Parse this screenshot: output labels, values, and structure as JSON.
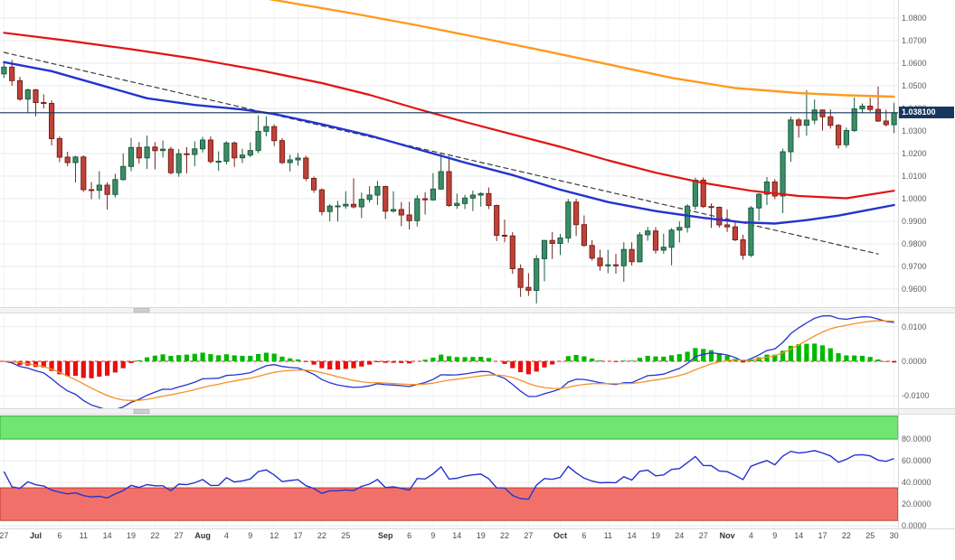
{
  "chart_data": {
    "type": "candlestick",
    "legend_position": "none",
    "grid": true,
    "xticks": [
      [
        0,
        "27"
      ],
      [
        4,
        "Jul"
      ],
      [
        7,
        "6"
      ],
      [
        10,
        "11"
      ],
      [
        13,
        "14"
      ],
      [
        16,
        "19"
      ],
      [
        19,
        "22"
      ],
      [
        22,
        "27"
      ],
      [
        25,
        "Aug"
      ],
      [
        28,
        "4"
      ],
      [
        31,
        "9"
      ],
      [
        34,
        "12"
      ],
      [
        37,
        "17"
      ],
      [
        40,
        "22"
      ],
      [
        43,
        "25"
      ],
      [
        48,
        "Sep"
      ],
      [
        51,
        "6"
      ],
      [
        54,
        "9"
      ],
      [
        57,
        "14"
      ],
      [
        60,
        "19"
      ],
      [
        63,
        "22"
      ],
      [
        66,
        "27"
      ],
      [
        70,
        "Oct"
      ],
      [
        73,
        "6"
      ],
      [
        76,
        "11"
      ],
      [
        79,
        "14"
      ],
      [
        82,
        "19"
      ],
      [
        85,
        "24"
      ],
      [
        88,
        "27"
      ],
      [
        91,
        "Nov"
      ],
      [
        94,
        "4"
      ],
      [
        97,
        "9"
      ],
      [
        100,
        "14"
      ],
      [
        103,
        "17"
      ],
      [
        106,
        "22"
      ],
      [
        109,
        "25"
      ],
      [
        112,
        "30"
      ]
    ],
    "price_panel": {
      "ylim": [
        0.952,
        1.088
      ],
      "yticks": [
        1.08,
        1.07,
        1.06,
        1.05,
        1.04,
        1.03,
        1.02,
        1.01,
        1.0,
        0.99,
        0.98,
        0.97,
        0.96
      ],
      "candle_colors": {
        "up": "#3a8e66",
        "up_edge": "#1f5a40",
        "down": "#bf4238",
        "down_edge": "#79231b"
      },
      "price_line": {
        "value": 1.0381,
        "label": "1.038100",
        "color": "#17375e"
      },
      "candles": [
        [
          1.0553,
          1.06,
          1.0535,
          1.0583
        ],
        [
          1.0583,
          1.0615,
          1.05,
          1.0523
        ],
        [
          1.0523,
          1.054,
          1.0434,
          1.0441
        ],
        [
          1.0441,
          1.0488,
          1.0382,
          1.0482
        ],
        [
          1.0482,
          1.0486,
          1.0365,
          1.0426
        ],
        [
          1.0426,
          1.0462,
          1.04,
          1.0422
        ],
        [
          1.0422,
          1.0435,
          1.0236,
          1.0266
        ],
        [
          1.0266,
          1.0276,
          1.0162,
          1.0184
        ],
        [
          1.0184,
          1.0208,
          1.0144,
          1.016
        ],
        [
          1.016,
          1.019,
          1.0072,
          1.0185
        ],
        [
          1.0185,
          1.0192,
          1.003,
          1.004
        ],
        [
          1.004,
          1.0074,
          0.9998,
          1.0037
        ],
        [
          1.0037,
          1.0122,
          0.9998,
          1.006
        ],
        [
          1.006,
          1.0072,
          0.9952,
          1.0019
        ],
        [
          1.0019,
          1.011,
          1.0005,
          1.0085
        ],
        [
          1.0085,
          1.0201,
          1.008,
          1.0143
        ],
        [
          1.0143,
          1.0269,
          1.0122,
          1.0227
        ],
        [
          1.0227,
          1.0251,
          1.0156,
          1.0181
        ],
        [
          1.0181,
          1.0279,
          1.0132,
          1.0229
        ],
        [
          1.0229,
          1.025,
          1.013,
          1.0213
        ],
        [
          1.0213,
          1.0258,
          1.0182,
          1.0219
        ],
        [
          1.0219,
          1.023,
          1.0108,
          1.0115
        ],
        [
          1.0115,
          1.022,
          1.0097,
          1.0199
        ],
        [
          1.0199,
          1.0228,
          1.0113,
          1.0196
        ],
        [
          1.0196,
          1.0254,
          1.0144,
          1.0221
        ],
        [
          1.0221,
          1.0274,
          1.0205,
          1.026
        ],
        [
          1.026,
          1.0276,
          1.0155,
          1.0165
        ],
        [
          1.0165,
          1.021,
          1.0123,
          1.0166
        ],
        [
          1.0166,
          1.0254,
          1.0152,
          1.0247
        ],
        [
          1.0247,
          1.0253,
          1.0141,
          1.0181
        ],
        [
          1.0181,
          1.0221,
          1.0158,
          1.0193
        ],
        [
          1.0193,
          1.0249,
          1.0184,
          1.0213
        ],
        [
          1.0213,
          1.0369,
          1.0202,
          1.0298
        ],
        [
          1.0298,
          1.0365,
          1.0276,
          1.0319
        ],
        [
          1.0319,
          1.0329,
          1.0233,
          1.0257
        ],
        [
          1.0257,
          1.0268,
          1.0154,
          1.016
        ],
        [
          1.016,
          1.0195,
          1.0121,
          1.0172
        ],
        [
          1.0172,
          1.0202,
          1.0146,
          1.018
        ],
        [
          1.018,
          1.0191,
          1.0078,
          1.009
        ],
        [
          1.009,
          1.0098,
          1.0026,
          1.0039
        ],
        [
          1.0039,
          1.0046,
          0.9926,
          0.9943
        ],
        [
          0.9943,
          0.9976,
          0.99,
          0.9967
        ],
        [
          0.9967,
          0.999,
          0.9899,
          0.9968
        ],
        [
          0.9968,
          1.0033,
          0.9956,
          0.9975
        ],
        [
          0.9975,
          1.009,
          0.9957,
          0.9964
        ],
        [
          0.9964,
          1.0027,
          0.9914,
          0.9997
        ],
        [
          0.9997,
          1.0055,
          0.9983,
          1.0016
        ],
        [
          1.0016,
          1.0079,
          0.9972,
          1.0054
        ],
        [
          1.0054,
          1.0058,
          0.991,
          0.9945
        ],
        [
          0.9945,
          1.0033,
          0.9939,
          0.9952
        ],
        [
          0.9952,
          0.9985,
          0.9878,
          0.9928
        ],
        [
          0.9928,
          0.9986,
          0.9864,
          0.9903
        ],
        [
          0.9903,
          1.0015,
          0.9877,
          1.0
        ],
        [
          1.0,
          1.0029,
          0.993,
          0.9995
        ],
        [
          0.9995,
          1.0113,
          0.9991,
          1.0043
        ],
        [
          1.0043,
          1.0198,
          1.004,
          1.012
        ],
        [
          1.012,
          1.0187,
          0.9964,
          0.997
        ],
        [
          0.997,
          1.0023,
          0.9955,
          0.9979
        ],
        [
          0.9979,
          1.0017,
          0.9954,
          1.0003
        ],
        [
          1.0003,
          1.0036,
          0.9945,
          1.0016
        ],
        [
          1.0016,
          1.0029,
          0.9965,
          1.0023
        ],
        [
          1.0023,
          1.005,
          0.9954,
          0.997
        ],
        [
          0.997,
          0.9974,
          0.9813,
          0.9838
        ],
        [
          0.9838,
          0.9907,
          0.9807,
          0.9835
        ],
        [
          0.9835,
          0.9852,
          0.9667,
          0.969
        ],
        [
          0.969,
          0.9709,
          0.9565,
          0.9607
        ],
        [
          0.9607,
          0.967,
          0.957,
          0.9594
        ],
        [
          0.9594,
          0.975,
          0.9536,
          0.9734
        ],
        [
          0.9734,
          0.9816,
          0.9634,
          0.9815
        ],
        [
          0.9815,
          0.9853,
          0.9733,
          0.9802
        ],
        [
          0.9802,
          0.9844,
          0.9751,
          0.9826
        ],
        [
          0.9826,
          0.9999,
          0.9805,
          0.9985
        ],
        [
          0.9985,
          1.0,
          0.9835,
          0.9885
        ],
        [
          0.9885,
          0.9926,
          0.9787,
          0.9793
        ],
        [
          0.9793,
          0.9817,
          0.9726,
          0.9737
        ],
        [
          0.9737,
          0.9774,
          0.9681,
          0.9703
        ],
        [
          0.9703,
          0.9774,
          0.967,
          0.9707
        ],
        [
          0.9707,
          0.9756,
          0.9668,
          0.9703
        ],
        [
          0.9703,
          0.9807,
          0.9632,
          0.9775
        ],
        [
          0.9775,
          0.9807,
          0.9704,
          0.9721
        ],
        [
          0.9721,
          0.9852,
          0.9718,
          0.984
        ],
        [
          0.984,
          0.9875,
          0.9814,
          0.9857
        ],
        [
          0.9857,
          0.9874,
          0.9757,
          0.9772
        ],
        [
          0.9772,
          0.9845,
          0.9756,
          0.9785
        ],
        [
          0.9785,
          0.987,
          0.9705,
          0.9861
        ],
        [
          0.9861,
          0.9899,
          0.9806,
          0.9873
        ],
        [
          0.9873,
          0.9976,
          0.985,
          0.9967
        ],
        [
          0.9967,
          1.0093,
          0.9952,
          1.0082
        ],
        [
          1.0082,
          1.0094,
          0.9959,
          0.9965
        ],
        [
          0.9965,
          0.9979,
          0.9871,
          0.9962
        ],
        [
          0.9962,
          0.9965,
          0.9872,
          0.9884
        ],
        [
          0.9884,
          0.9953,
          0.9853,
          0.9875
        ],
        [
          0.9875,
          0.9899,
          0.9812,
          0.9818
        ],
        [
          0.9818,
          0.984,
          0.973,
          0.975
        ],
        [
          0.975,
          0.9967,
          0.9741,
          0.9959
        ],
        [
          0.9959,
          1.0024,
          0.9903,
          1.002
        ],
        [
          1.002,
          1.0096,
          0.9972,
          1.0074
        ],
        [
          1.0074,
          1.0087,
          0.9998,
          1.0012
        ],
        [
          1.0012,
          1.0222,
          0.9936,
          1.0208
        ],
        [
          1.0208,
          1.0364,
          1.0163,
          1.0349
        ],
        [
          1.0349,
          1.0358,
          1.0271,
          1.0325
        ],
        [
          1.0325,
          1.0481,
          1.0279,
          1.0348
        ],
        [
          1.0348,
          1.0439,
          1.033,
          1.0393
        ],
        [
          1.0393,
          1.0395,
          1.0302,
          1.0363
        ],
        [
          1.0363,
          1.0395,
          1.031,
          1.0325
        ],
        [
          1.0325,
          1.0331,
          1.0222,
          1.0239
        ],
        [
          1.0239,
          1.0315,
          1.0226,
          1.0302
        ],
        [
          1.0302,
          1.0448,
          1.0295,
          1.0398
        ],
        [
          1.0398,
          1.0422,
          1.0382,
          1.041
        ],
        [
          1.041,
          1.0447,
          1.0385,
          1.0395
        ],
        [
          1.0395,
          1.0497,
          1.034,
          1.0344
        ],
        [
          1.0344,
          1.0394,
          1.0319,
          1.0328
        ],
        [
          1.0328,
          1.0425,
          1.029,
          1.0381
        ]
      ],
      "overlays": [
        {
          "name": "ma-orange",
          "color": "#ff9a1e",
          "width": 2.4,
          "points": [
            [
              0,
              1.1065
            ],
            [
              12,
              1.1005
            ],
            [
              22,
              1.095
            ],
            [
              30,
              1.0905
            ],
            [
              36,
              1.0868
            ],
            [
              44,
              1.082
            ],
            [
              52,
              1.0768
            ],
            [
              60,
              1.0712
            ],
            [
              68,
              1.0655
            ],
            [
              76,
              1.0595
            ],
            [
              84,
              1.0535
            ],
            [
              92,
              1.049
            ],
            [
              100,
              1.0468
            ],
            [
              106,
              1.0458
            ],
            [
              112,
              1.0452
            ]
          ]
        },
        {
          "name": "ma-red",
          "color": "#e31212",
          "width": 2.2,
          "points": [
            [
              0,
              1.0735
            ],
            [
              8,
              1.07
            ],
            [
              16,
              1.0662
            ],
            [
              24,
              1.062
            ],
            [
              32,
              1.057
            ],
            [
              40,
              1.0512
            ],
            [
              46,
              1.046
            ],
            [
              52,
              1.0398
            ],
            [
              58,
              1.034
            ],
            [
              64,
              1.0285
            ],
            [
              70,
              1.023
            ],
            [
              76,
              1.017
            ],
            [
              82,
              1.0115
            ],
            [
              88,
              1.007
            ],
            [
              94,
              1.0035
            ],
            [
              100,
              1.0012
            ],
            [
              106,
              1.0002
            ],
            [
              112,
              1.0035
            ]
          ]
        },
        {
          "name": "ma-blue",
          "color": "#2433cf",
          "width": 2.4,
          "points": [
            [
              0,
              1.0605
            ],
            [
              6,
              1.0565
            ],
            [
              12,
              1.0505
            ],
            [
              18,
              1.0445
            ],
            [
              24,
              1.0415
            ],
            [
              30,
              1.0395
            ],
            [
              34,
              1.0375
            ],
            [
              40,
              1.033
            ],
            [
              46,
              1.028
            ],
            [
              52,
              1.022
            ],
            [
              58,
              1.016
            ],
            [
              64,
              1.0105
            ],
            [
              70,
              1.004
            ],
            [
              76,
              0.9985
            ],
            [
              82,
              0.9945
            ],
            [
              88,
              0.9915
            ],
            [
              93,
              0.9895
            ],
            [
              97,
              0.989
            ],
            [
              101,
              0.9905
            ],
            [
              105,
              0.9925
            ],
            [
              108,
              0.9945
            ],
            [
              112,
              0.9972
            ]
          ]
        },
        {
          "name": "trendline",
          "color": "#3c3c3c",
          "width": 1.2,
          "dash": "5,4",
          "points": [
            [
              0,
              1.0648
            ],
            [
              110,
              0.9755
            ]
          ]
        }
      ]
    },
    "macd_panel": {
      "ylim": [
        -0.0136,
        0.0136
      ],
      "yticks": [
        0.01,
        0,
        -0.01
      ],
      "ema_fast": 12,
      "ema_slow": 26,
      "signal": 9,
      "colors": {
        "macd_line": "#2433cf",
        "signal_line": "#f59129",
        "hist_pos": "#00b800",
        "hist_neg": "#e80f0f",
        "zero_line": "#ff1414"
      }
    },
    "osc_panel": {
      "ylim": [
        -1.5,
        102.5
      ],
      "yticks": [
        80,
        60,
        40,
        20,
        0
      ],
      "period": 14,
      "line_color": "#2433cf",
      "zones": [
        {
          "from": 80,
          "to": 101.2,
          "fill": "#72e472",
          "edge": "#2eb42e"
        },
        {
          "from": 5,
          "to": 35,
          "fill": "#f1716a",
          "edge": "#c0392f"
        }
      ]
    }
  }
}
